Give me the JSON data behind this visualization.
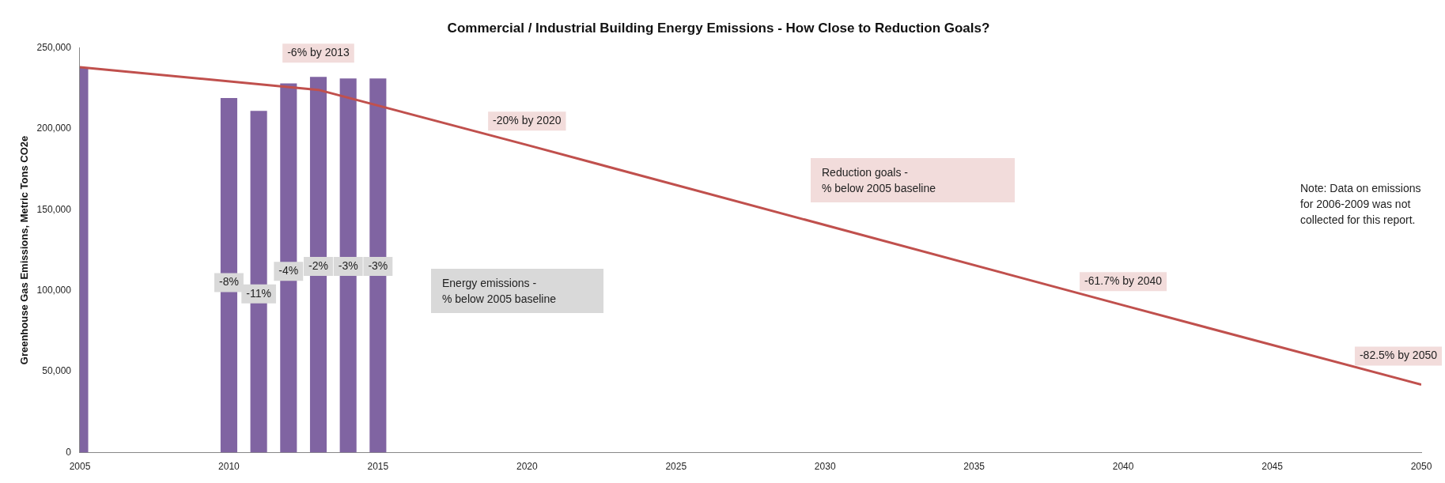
{
  "chart_data": {
    "type": "bar",
    "title": "Commercial / Industrial Building Energy Emissions - How Close to Reduction Goals?",
    "ylabel": "Greenhouse Gas Emissions, Metric Tons CO2e",
    "xlim": [
      2005,
      2050
    ],
    "xticks": [
      2005,
      2010,
      2015,
      2020,
      2025,
      2030,
      2035,
      2040,
      2045,
      2050
    ],
    "ylim": [
      0,
      250000
    ],
    "yticks": [
      {
        "value": 0,
        "label": "0"
      },
      {
        "value": 50000,
        "label": "50,000"
      },
      {
        "value": 100000,
        "label": "100,000"
      },
      {
        "value": 150000,
        "label": "150,000"
      },
      {
        "value": 200000,
        "label": "200,000"
      },
      {
        "value": 250000,
        "label": "250,000"
      }
    ],
    "grid": false,
    "series": [
      {
        "color": "#8064a2",
        "x": [
          2005,
          2010,
          2011,
          2012,
          2013,
          2014,
          2015
        ],
        "values": [
          238000,
          219000,
          211000,
          228000,
          232000,
          231000,
          231000
        ]
      },
      {
        "type": "line",
        "color": "#c0504d",
        "x": [
          2005,
          2013,
          2020,
          2040,
          2050
        ],
        "values": [
          238000,
          224000,
          190000,
          91000,
          42000
        ]
      }
    ],
    "annotations": [
      {
        "text": "-8%",
        "x": 2010,
        "y": 105000
      },
      {
        "text": "-11%",
        "x": 2011,
        "y": 98000
      },
      {
        "text": "-4%",
        "x": 2012,
        "y": 112000
      },
      {
        "text": "-2%",
        "x": 2013,
        "y": 115000
      },
      {
        "text": "-3%",
        "x": 2014,
        "y": 115000
      },
      {
        "text": "-3%",
        "x": 2015,
        "y": 115000
      },
      {
        "text": "-6% by 2013",
        "x": 2013,
        "y": 224000
      },
      {
        "text": "-20% by 2020",
        "x": 2020,
        "y": 190000
      },
      {
        "text": "-61.7% by 2040",
        "x": 2040,
        "y": 91000
      },
      {
        "text": "-82.5% by 2050",
        "x": 2050,
        "y": 42000
      },
      "Energy emissions -\n% below 2005 baseline",
      "Reduction goals -\n% below 2005 baseline",
      "Note: Data on emissions\nfor 2006-2009 was not\ncollected for this report."
    ]
  }
}
